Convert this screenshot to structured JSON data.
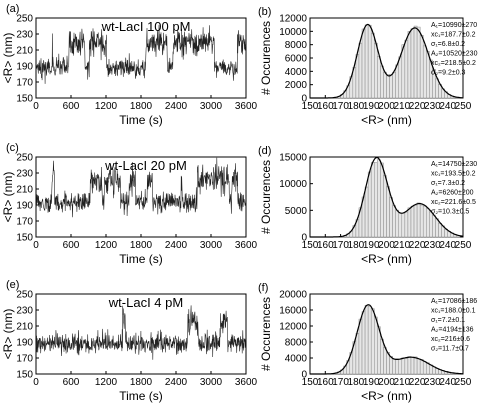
{
  "chart_data": [
    {
      "panel_label": "(a)",
      "type": "line",
      "title": "wt-LacI 100 pM",
      "xlabel": "Time (s)",
      "ylabel": "<R> (nm)",
      "xlim": [
        0,
        3600
      ],
      "ylim": [
        150,
        250
      ],
      "xticks": [
        "0",
        "600",
        "1200",
        "1800",
        "2400",
        "3000",
        "3600"
      ],
      "yticks": [
        "150",
        "170",
        "190",
        "210",
        "230",
        "250"
      ],
      "trace": {
        "states": [
          187.7,
          218.5
        ],
        "sigma": [
          6.8,
          9.2
        ],
        "p_high": 0.5,
        "n": 720
      }
    },
    {
      "panel_label": "(b)",
      "type": "bar",
      "xlabel": "<R> (nm)",
      "ylabel": "# Occurences",
      "xlim": [
        150,
        250
      ],
      "ylim": [
        0,
        12000
      ],
      "xticks": [
        "150",
        "160",
        "170",
        "180",
        "190",
        "200",
        "210",
        "220",
        "230",
        "240",
        "250"
      ],
      "yticks": [
        "0",
        "2000",
        "4000",
        "6000",
        "8000",
        "10000",
        "12000"
      ],
      "fit": [
        {
          "A": 10990,
          "xc": 187.7,
          "sigma": 6.8
        },
        {
          "A": 10520,
          "xc": 218.5,
          "sigma": 9.2
        }
      ],
      "annotations": [
        "A₁=10990±270",
        "xc₁=187.7±0.2",
        "σ₁=6.8±0.2",
        "A₂=10520±230",
        "xc₂=218.5±0.2",
        "σ₂=9.2±0.3"
      ]
    },
    {
      "panel_label": "(c)",
      "type": "line",
      "title": "wt-LacI 20 pM",
      "xlabel": "Time (s)",
      "ylabel": "<R> (nm)",
      "xlim": [
        0,
        3600
      ],
      "ylim": [
        150,
        250
      ],
      "xticks": [
        "0",
        "600",
        "1200",
        "1800",
        "2400",
        "3000",
        "3600"
      ],
      "yticks": [
        "150",
        "170",
        "190",
        "210",
        "230",
        "250"
      ],
      "trace": {
        "states": [
          193.5,
          221.6
        ],
        "sigma": [
          7.3,
          10.3
        ],
        "p_high": 0.3,
        "n": 720
      }
    },
    {
      "panel_label": "(d)",
      "type": "bar",
      "xlabel": "<R> (nm)",
      "ylabel": "# Occurences",
      "xlim": [
        150,
        250
      ],
      "ylim": [
        0,
        15000
      ],
      "xticks": [
        "150",
        "160",
        "170",
        "180",
        "190",
        "200",
        "210",
        "220",
        "230",
        "240",
        "250"
      ],
      "yticks": [
        "0",
        "5000",
        "10000",
        "15000"
      ],
      "fit": [
        {
          "A": 14750,
          "xc": 193.5,
          "sigma": 7.3
        },
        {
          "A": 6260,
          "xc": 221.6,
          "sigma": 10.3
        }
      ],
      "annotations": [
        "A₁=14750±230",
        "xc₁=193.5±0.2",
        "σ₁=7.3±0.2",
        "A₂=6260±200",
        "xc₂=221.6±0.5",
        "σ₂=10.3±0.5"
      ]
    },
    {
      "panel_label": "(e)",
      "type": "line",
      "title": "wt-LacI 4 pM",
      "xlabel": "Time (s)",
      "ylabel": "<R> (nm)",
      "xlim": [
        0,
        3600
      ],
      "ylim": [
        150,
        250
      ],
      "xticks": [
        "0",
        "600",
        "1200",
        "1800",
        "2400",
        "3000",
        "3600"
      ],
      "yticks": [
        "150",
        "170",
        "190",
        "210",
        "230",
        "250"
      ],
      "trace": {
        "states": [
          188.0,
          216.0
        ],
        "sigma": [
          7.2,
          11.7
        ],
        "p_high": 0.2,
        "n": 720
      }
    },
    {
      "panel_label": "(f)",
      "type": "bar",
      "xlabel": "<R> (nm)",
      "ylabel": "# Occurences",
      "xlim": [
        150,
        250
      ],
      "ylim": [
        0,
        20000
      ],
      "xticks": [
        "150",
        "160",
        "170",
        "180",
        "190",
        "200",
        "210",
        "220",
        "230",
        "240",
        "250"
      ],
      "yticks": [
        "0",
        "4000",
        "8000",
        "12000",
        "16000",
        "20000"
      ],
      "fit": [
        {
          "A": 17086,
          "xc": 188.0,
          "sigma": 7.2
        },
        {
          "A": 4194,
          "xc": 216.0,
          "sigma": 11.7
        }
      ],
      "annotations": [
        "A₁=17086±186",
        "xc₁=188.0±0.1",
        "σ₁=7.2±0.1",
        "A₂=4194±136",
        "xc₂=216±0.6",
        "σ₂=11.7±0.7"
      ]
    }
  ]
}
